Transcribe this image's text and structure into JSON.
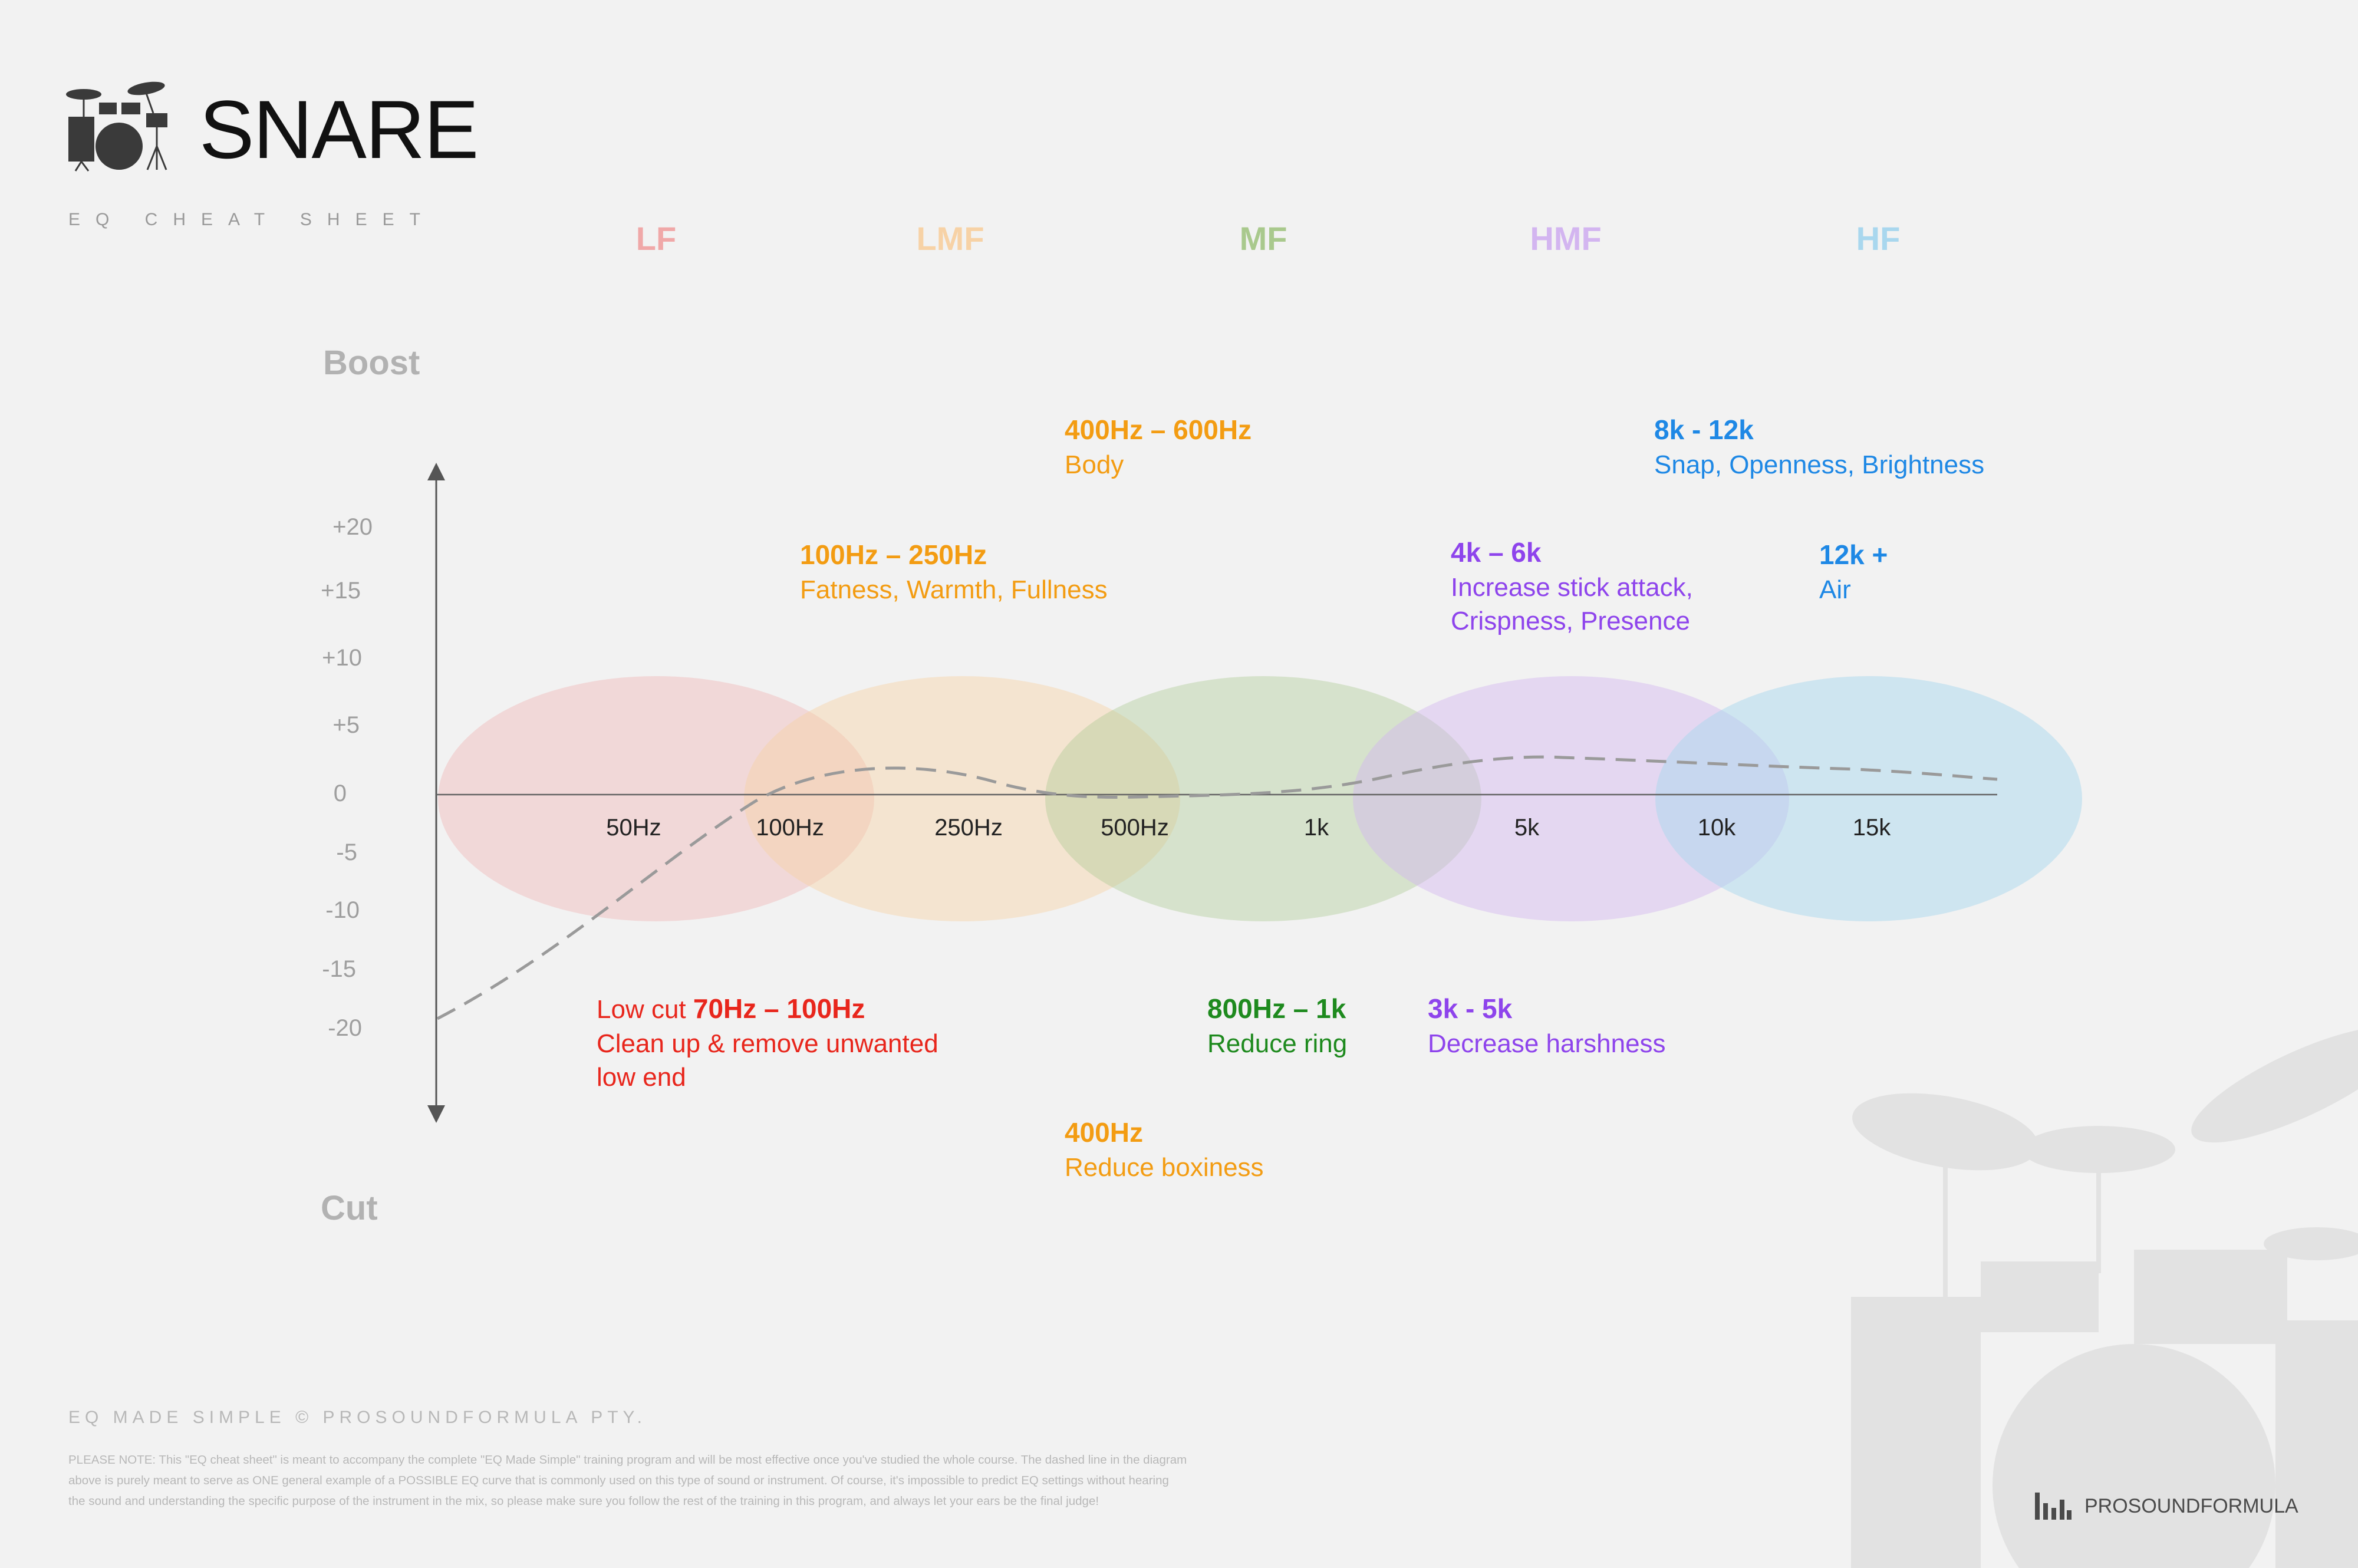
{
  "title": "SNARE",
  "subtitle": "EQ CHEAT SHEET",
  "bands": [
    {
      "label": "LF",
      "color": "#f0a8a8"
    },
    {
      "label": "LMF",
      "color": "#f7d2a6"
    },
    {
      "label": "MF",
      "color": "#a9c98d"
    },
    {
      "label": "HMF",
      "color": "#d3b5f0"
    },
    {
      "label": "HF",
      "color": "#a9d7ee"
    }
  ],
  "axis": {
    "boost_label": "Boost",
    "cut_label": "Cut",
    "y_ticks": [
      "+20",
      "+15",
      "+10",
      "+5",
      "0",
      "-5",
      "-10",
      "-15",
      "-20"
    ],
    "x_ticks": [
      "50Hz",
      "100Hz",
      "250Hz",
      "500Hz",
      "1k",
      "5k",
      "10k",
      "15k"
    ]
  },
  "annotations": {
    "body": {
      "range": "400Hz – 600Hz",
      "desc": "Body",
      "color": "#f39c12"
    },
    "fatness": {
      "range": "100Hz – 250Hz",
      "desc": "Fatness, Warmth, Fullness",
      "color": "#f39c12"
    },
    "snap": {
      "range": "8k - 12k",
      "desc": "Snap, Openness, Brightness",
      "color": "#1e88e5"
    },
    "attack": {
      "range": "4k – 6k",
      "desc1": "Increase stick attack,",
      "desc2": "Crispness, Presence",
      "color": "#8e44ec"
    },
    "air": {
      "range": "12k +",
      "desc": "Air",
      "color": "#1e88e5"
    },
    "lowcut": {
      "prefix": "Low cut ",
      "range": "70Hz – 100Hz",
      "desc1": "Clean up & remove unwanted",
      "desc2": "low end",
      "color": "#e8261c"
    },
    "ring": {
      "range": "800Hz – 1k",
      "desc": "Reduce ring",
      "color": "#1e8a1e"
    },
    "harsh": {
      "range": "3k - 5k",
      "desc": "Decrease harshness",
      "color": "#8e44ec"
    },
    "boxiness": {
      "range": "400Hz",
      "desc": "Reduce boxiness",
      "color": "#f39c12"
    }
  },
  "footer": {
    "credit": "EQ MADE SIMPLE © PROSOUNDFORMULA PTY.",
    "note": "PLEASE NOTE: This \"EQ cheat sheet\" is meant to accompany the complete \"EQ Made Simple\" training program and will be most effective once you've studied the whole course. The dashed line in the diagram above is purely meant to serve as ONE general example of a POSSIBLE EQ curve that is commonly used on this type of sound or instrument. Of course, it's impossible to predict EQ settings without hearing the sound and understanding the specific purpose of the instrument in the mix, so please make sure you follow the rest of the training in this program, and always let your ears be the final judge!",
    "brand": "PROSOUNDFORMULA"
  }
}
